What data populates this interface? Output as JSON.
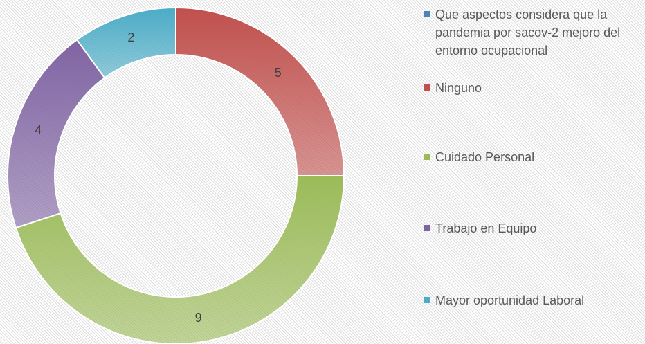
{
  "chart_data": {
    "type": "donut",
    "categories": [
      "Que aspectos considera que la pandemia por sacov-2 mejoro del entorno ocupacional",
      "Ninguno",
      "Cuidado Personal",
      "Trabajo en Equipo",
      "Mayor oportunidad Laboral"
    ],
    "values": [
      null,
      5,
      9,
      4,
      2
    ],
    "colors": [
      "#4f81bd",
      "#c0504d",
      "#9bbb59",
      "#8064a2",
      "#4bacc6"
    ],
    "legend": "right"
  }
}
